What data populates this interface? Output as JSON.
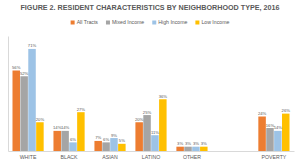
{
  "chart_data": {
    "type": "bar",
    "title": "FIGURE 2. RESIDENT CHARACTERISTICS BY NEIGHBORHOOD TYPE, 2016",
    "categories": [
      "WHITE",
      "BLACK",
      "ASIAN",
      "LATINO",
      "OTHER",
      null,
      "POVERTY"
    ],
    "series": [
      {
        "name": "All Tracts",
        "color": "#ed7d31",
        "values": [
          56,
          14,
          7,
          20,
          3,
          null,
          24
        ],
        "value_labels": [
          "56%",
          "14%",
          "7%",
          "20%",
          "3%",
          null,
          "24%"
        ]
      },
      {
        "name": "Mixed Income",
        "color": "#a5a5a5",
        "values": [
          52,
          14,
          6,
          25,
          3,
          null,
          16
        ],
        "value_labels": [
          "52%",
          "14%",
          "6%",
          "25%",
          "3%",
          null,
          "16%"
        ]
      },
      {
        "name": "High Income",
        "color": "#9dc3e6",
        "values": [
          71,
          6,
          9,
          11,
          3,
          null,
          14
        ],
        "value_labels": [
          "71%",
          "6%",
          "9%",
          "11%",
          "3%",
          null,
          "14%"
        ]
      },
      {
        "name": "Low Income",
        "color": "#ffc000",
        "values": [
          20,
          27,
          5,
          36,
          3,
          null,
          26
        ],
        "value_labels": [
          "20%",
          "27%",
          "5%",
          "36%",
          "3%",
          null,
          "26%"
        ]
      }
    ],
    "ylim": [
      0,
      80
    ],
    "data_labels": true,
    "tick_labels": "x",
    "legend": "top"
  }
}
